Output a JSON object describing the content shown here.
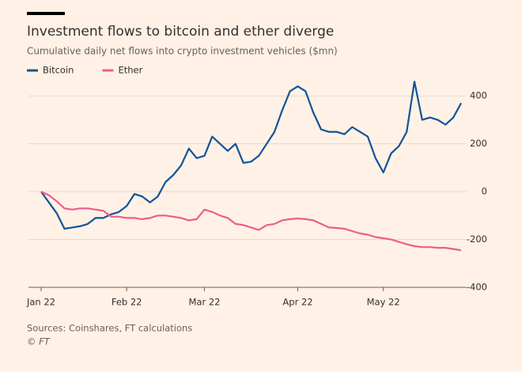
{
  "chart_data": {
    "type": "line",
    "title": "Investment flows to bitcoin and ether diverge",
    "subtitle": "Cumulative daily net flows into crypto investment vehicles ($mn)",
    "source": "Sources: Coinshares, FT calculations",
    "credit": "© FT",
    "categories": [
      "Jan 22",
      null,
      null,
      null,
      null,
      null,
      null,
      null,
      null,
      null,
      null,
      "Feb 22",
      null,
      null,
      null,
      null,
      null,
      null,
      null,
      null,
      null,
      "Mar 22",
      null,
      null,
      null,
      null,
      null,
      null,
      null,
      null,
      null,
      null,
      null,
      "Apr 22",
      null,
      null,
      null,
      null,
      null,
      null,
      null,
      null,
      null,
      null,
      "May 22",
      null,
      null,
      null,
      null,
      null,
      null,
      null,
      null,
      null,
      null
    ],
    "series": [
      {
        "name": "Bitcoin",
        "color": "#0f5499",
        "values": [
          0,
          -45,
          -90,
          -155,
          -150,
          -145,
          -135,
          -110,
          -110,
          -95,
          -85,
          -60,
          -10,
          -20,
          -45,
          -20,
          40,
          70,
          110,
          180,
          140,
          150,
          230,
          200,
          170,
          200,
          120,
          125,
          150,
          200,
          250,
          340,
          420,
          440,
          420,
          330,
          260,
          250,
          250,
          240,
          270,
          250,
          230,
          140,
          80,
          160,
          190,
          250,
          460,
          300,
          310,
          300,
          280,
          310,
          370
        ]
      },
      {
        "name": "Ether",
        "color": "#eb5e8d",
        "values": [
          0,
          -15,
          -40,
          -70,
          -75,
          -70,
          -70,
          -75,
          -80,
          -105,
          -105,
          -110,
          -110,
          -115,
          -110,
          -100,
          -100,
          -105,
          -110,
          -120,
          -115,
          -75,
          -85,
          -100,
          -110,
          -135,
          -140,
          -150,
          -160,
          -140,
          -135,
          -120,
          -115,
          -112,
          -115,
          -120,
          -135,
          -150,
          -152,
          -155,
          -165,
          -175,
          -180,
          -190,
          -195,
          -200,
          -210,
          -220,
          -228,
          -232,
          -232,
          -235,
          -235,
          -240,
          -245
        ]
      }
    ],
    "ylim": [
      -400,
      500
    ],
    "yticks": [
      -400,
      -200,
      0,
      200,
      400
    ],
    "grid": true,
    "legend": "top-left"
  }
}
